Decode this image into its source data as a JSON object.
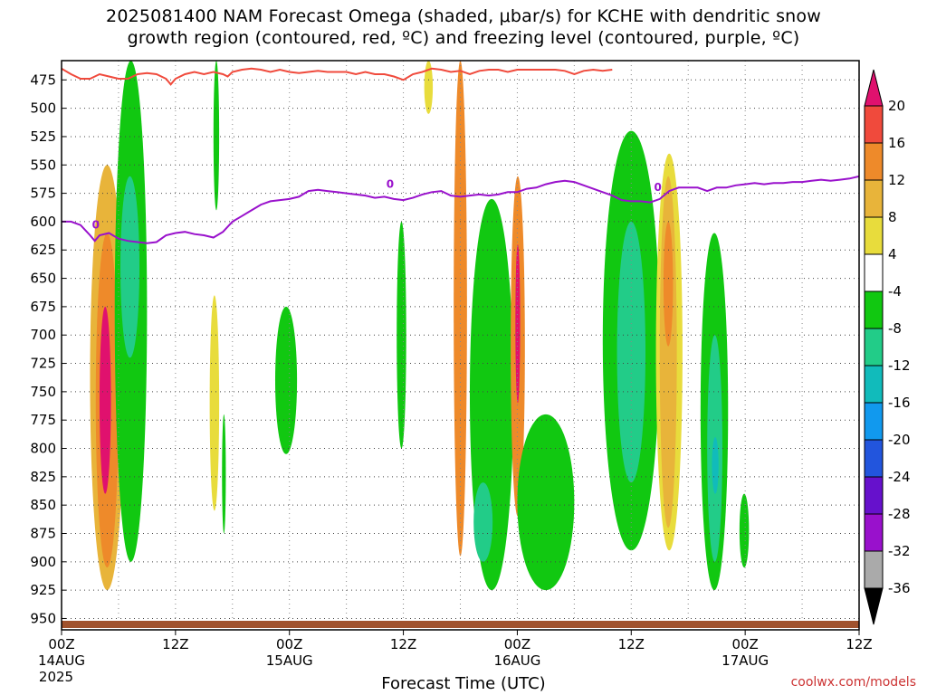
{
  "title": {
    "line1": "2025081400 NAM Forecast Omega (shaded, μbar/s) for KCHE with dendritic snow",
    "line2": "growth region (contoured, red, ºC) and freezing level (contoured, purple, ºC)"
  },
  "credit": "coolwx.com/models",
  "chart_data": {
    "type": "heatmap",
    "title": "2025081400 NAM Forecast Omega (shaded, μbar/s) for KCHE with dendritic snow growth region (contoured, red, ºC) and freezing level (contoured, purple, ºC)",
    "xlabel": "Forecast Time (UTC)",
    "ylabel": "",
    "x_hours_range": [
      0,
      84
    ],
    "y_pressure_range_hPa": [
      960,
      458
    ],
    "y_ticks": [
      475,
      500,
      525,
      550,
      575,
      600,
      625,
      650,
      675,
      700,
      725,
      750,
      775,
      800,
      825,
      850,
      875,
      900,
      925,
      950
    ],
    "x_ticks": [
      {
        "hour": 0,
        "label": "00Z",
        "date": "14AUG",
        "year": "2025"
      },
      {
        "hour": 12,
        "label": "12Z",
        "date": "",
        "year": ""
      },
      {
        "hour": 24,
        "label": "00Z",
        "date": "15AUG",
        "year": ""
      },
      {
        "hour": 36,
        "label": "12Z",
        "date": "",
        "year": ""
      },
      {
        "hour": 48,
        "label": "00Z",
        "date": "16AUG",
        "year": ""
      },
      {
        "hour": 60,
        "label": "12Z",
        "date": "",
        "year": ""
      },
      {
        "hour": 72,
        "label": "00Z",
        "date": "17AUG",
        "year": ""
      },
      {
        "hour": 84,
        "label": "12Z",
        "date": "",
        "year": ""
      }
    ],
    "grid": true,
    "colorbar": {
      "position": "right",
      "levels": [
        {
          "label": "20",
          "color": "#e0116e"
        },
        {
          "label": "16",
          "color": "#f04a3c"
        },
        {
          "label": "12",
          "color": "#ee8a2a"
        },
        {
          "label": "8",
          "color": "#e8b43a"
        },
        {
          "label": "4",
          "color": "#e8dc3c"
        },
        {
          "label": "-4",
          "color": "#ffffff"
        },
        {
          "label": "-8",
          "color": "#11c811"
        },
        {
          "label": "-12",
          "color": "#22cc88"
        },
        {
          "label": "-16",
          "color": "#11bbbb"
        },
        {
          "label": "-20",
          "color": "#1199ee"
        },
        {
          "label": "-24",
          "color": "#2255dd"
        },
        {
          "label": "-28",
          "color": "#6611cc"
        },
        {
          "label": "-32",
          "color": "#9911cc"
        },
        {
          "label": "-36",
          "color": "#aaaaaa"
        }
      ],
      "top_arrow_color": "#e0116e",
      "bottom_arrow_color": "#000000"
    },
    "freezing_level": {
      "contour_label": "0",
      "color": "#9911cc",
      "points": [
        [
          0,
          600
        ],
        [
          1,
          600
        ],
        [
          2,
          603
        ],
        [
          3,
          612
        ],
        [
          3.5,
          617
        ],
        [
          4,
          612
        ],
        [
          5,
          610
        ],
        [
          6,
          615
        ],
        [
          7,
          617
        ],
        [
          8,
          618
        ],
        [
          9,
          619
        ],
        [
          10,
          618
        ],
        [
          11,
          612
        ],
        [
          12,
          610
        ],
        [
          13,
          609
        ],
        [
          14,
          611
        ],
        [
          15,
          612
        ],
        [
          16,
          614
        ],
        [
          17,
          609
        ],
        [
          18,
          600
        ],
        [
          19,
          595
        ],
        [
          20,
          590
        ],
        [
          21,
          585
        ],
        [
          22,
          582
        ],
        [
          23,
          581
        ],
        [
          24,
          580
        ],
        [
          25,
          578
        ],
        [
          26,
          573
        ],
        [
          27,
          572
        ],
        [
          28,
          573
        ],
        [
          29,
          574
        ],
        [
          30,
          575
        ],
        [
          31,
          576
        ],
        [
          32,
          577
        ],
        [
          33,
          579
        ],
        [
          34,
          578
        ],
        [
          35,
          580
        ],
        [
          36,
          581
        ],
        [
          37,
          579
        ],
        [
          38,
          576
        ],
        [
          39,
          574
        ],
        [
          40,
          573
        ],
        [
          41,
          577
        ],
        [
          42,
          578
        ],
        [
          43,
          577
        ],
        [
          44,
          576
        ],
        [
          45,
          577
        ],
        [
          46,
          576
        ],
        [
          47,
          574
        ],
        [
          48,
          574
        ],
        [
          49,
          571
        ],
        [
          50,
          570
        ],
        [
          51,
          567
        ],
        [
          52,
          565
        ],
        [
          53,
          564
        ],
        [
          54,
          565
        ],
        [
          55,
          568
        ],
        [
          56,
          571
        ],
        [
          57,
          574
        ],
        [
          58,
          577
        ],
        [
          59,
          581
        ],
        [
          60,
          582
        ],
        [
          61,
          582
        ],
        [
          62,
          583
        ],
        [
          63,
          580
        ],
        [
          64,
          573
        ],
        [
          65,
          570
        ],
        [
          66,
          570
        ],
        [
          67,
          570
        ],
        [
          68,
          573
        ],
        [
          69,
          570
        ],
        [
          70,
          570
        ],
        [
          71,
          568
        ],
        [
          72,
          567
        ],
        [
          73,
          566
        ],
        [
          74,
          567
        ],
        [
          75,
          566
        ],
        [
          76,
          566
        ],
        [
          77,
          565
        ],
        [
          78,
          565
        ],
        [
          79,
          564
        ],
        [
          80,
          563
        ],
        [
          81,
          564
        ],
        [
          82,
          563
        ],
        [
          83,
          562
        ],
        [
          84,
          560
        ]
      ]
    },
    "dendritic_zone_bottom": {
      "color": "#f04a3c",
      "points": [
        [
          0,
          465
        ],
        [
          1,
          470
        ],
        [
          2,
          474
        ],
        [
          3,
          474
        ],
        [
          4,
          470
        ],
        [
          5,
          472
        ],
        [
          6,
          474
        ],
        [
          7,
          474
        ],
        [
          8,
          470
        ],
        [
          9,
          469
        ],
        [
          10,
          470
        ],
        [
          11,
          474
        ],
        [
          11.5,
          479
        ],
        [
          12,
          474
        ],
        [
          13,
          470
        ],
        [
          14,
          468
        ],
        [
          15,
          470
        ],
        [
          16,
          468
        ],
        [
          17,
          470
        ],
        [
          17.5,
          472
        ],
        [
          18,
          468
        ],
        [
          19,
          466
        ],
        [
          20,
          465
        ],
        [
          21,
          466
        ],
        [
          22,
          468
        ],
        [
          23,
          466
        ],
        [
          24,
          468
        ],
        [
          25,
          469
        ],
        [
          26,
          468
        ],
        [
          27,
          467
        ],
        [
          28,
          468
        ],
        [
          29,
          468
        ],
        [
          30,
          468
        ],
        [
          31,
          470
        ],
        [
          32,
          468
        ],
        [
          33,
          470
        ],
        [
          34,
          470
        ],
        [
          35,
          472
        ],
        [
          36,
          475
        ],
        [
          37,
          470
        ],
        [
          38,
          468
        ],
        [
          39,
          465
        ],
        [
          40,
          466
        ],
        [
          41,
          468
        ],
        [
          42,
          467
        ],
        [
          43,
          470
        ],
        [
          44,
          467
        ],
        [
          45,
          466
        ],
        [
          46,
          466
        ],
        [
          47,
          468
        ],
        [
          48,
          466
        ],
        [
          49,
          466
        ],
        [
          50,
          466
        ],
        [
          51,
          466
        ],
        [
          52,
          466
        ],
        [
          53,
          467
        ],
        [
          54,
          470
        ],
        [
          55,
          467
        ],
        [
          56,
          466
        ],
        [
          57,
          467
        ],
        [
          58,
          466
        ]
      ]
    },
    "omega_regions": [
      {
        "name": "east-upslope-ascent-left",
        "value": 8,
        "hours": [
          3.0,
          6.6
        ],
        "pressure": [
          550,
          925
        ]
      },
      {
        "name": "east-upslope-ascent-left-core",
        "value": 12,
        "hours": [
          3.6,
          6.0
        ],
        "pressure": [
          610,
          905
        ]
      },
      {
        "name": "east-upslope-ascent-left-peak",
        "value": 20,
        "hours": [
          4.0,
          5.2
        ],
        "pressure": [
          675,
          840
        ]
      },
      {
        "name": "subsidence-left",
        "value": -8,
        "hours": [
          5.6,
          9.0
        ],
        "pressure": [
          458,
          900
        ]
      },
      {
        "name": "subsidence-left-core",
        "value": -12,
        "hours": [
          6.2,
          8.2
        ],
        "pressure": [
          560,
          720
        ]
      },
      {
        "name": "subsidence-midday",
        "value": -8,
        "hours": [
          16.0,
          16.6
        ],
        "pressure": [
          458,
          590
        ]
      },
      {
        "name": "ascent-midday",
        "value": 4,
        "hours": [
          15.6,
          16.6
        ],
        "pressure": [
          665,
          855
        ]
      },
      {
        "name": "subsidence-midday-low",
        "value": -8,
        "hours": [
          16.9,
          17.3
        ],
        "pressure": [
          770,
          875
        ]
      },
      {
        "name": "subsidence-15aug-0z",
        "value": -8,
        "hours": [
          22.5,
          24.8
        ],
        "pressure": [
          675,
          805
        ]
      },
      {
        "name": "ascent-15aug-12z",
        "value": 4,
        "hours": [
          38.2,
          39.1
        ],
        "pressure": [
          458,
          505
        ]
      },
      {
        "name": "subsidence-15aug-12z",
        "value": -8,
        "hours": [
          35.3,
          36.3
        ],
        "pressure": [
          600,
          800
        ]
      },
      {
        "name": "strong-ascent-15aug-18z",
        "value": 20,
        "hours": [
          41.6,
          42.4
        ],
        "pressure": [
          458,
          890
        ]
      },
      {
        "name": "strong-ascent-15aug-18z-halo",
        "value": 12,
        "hours": [
          41.3,
          42.7
        ],
        "pressure": [
          458,
          895
        ]
      },
      {
        "name": "subsidence-15aug-20z",
        "value": -8,
        "hours": [
          43.0,
          47.6
        ],
        "pressure": [
          580,
          925
        ]
      },
      {
        "name": "subsidence-15aug-20z-core",
        "value": -12,
        "hours": [
          43.4,
          45.4
        ],
        "pressure": [
          830,
          900
        ]
      },
      {
        "name": "ascent-16aug-0z",
        "value": 12,
        "hours": [
          47.3,
          48.8
        ],
        "pressure": [
          560,
          860
        ]
      },
      {
        "name": "ascent-16aug-0z-peak",
        "value": 20,
        "hours": [
          47.8,
          48.3
        ],
        "pressure": [
          620,
          760
        ]
      },
      {
        "name": "subsidence-16aug-2z",
        "value": -8,
        "hours": [
          48.0,
          54.0
        ],
        "pressure": [
          770,
          925
        ]
      },
      {
        "name": "subsidence-16aug-12z",
        "value": -8,
        "hours": [
          57.0,
          63.0
        ],
        "pressure": [
          520,
          890
        ]
      },
      {
        "name": "subsidence-16aug-12z-core",
        "value": -12,
        "hours": [
          58.5,
          61.5
        ],
        "pressure": [
          600,
          830
        ]
      },
      {
        "name": "ascent-16aug-15z",
        "value": 4,
        "hours": [
          62.6,
          65.4
        ],
        "pressure": [
          540,
          890
        ]
      },
      {
        "name": "ascent-16aug-15z-core",
        "value": 8,
        "hours": [
          63.0,
          64.8
        ],
        "pressure": [
          560,
          870
        ]
      },
      {
        "name": "ascent-16aug-15z-peak",
        "value": 12,
        "hours": [
          63.4,
          64.4
        ],
        "pressure": [
          600,
          710
        ]
      },
      {
        "name": "subsidence-16aug-20z",
        "value": -8,
        "hours": [
          67.3,
          70.2
        ],
        "pressure": [
          610,
          925
        ]
      },
      {
        "name": "subsidence-16aug-20z-core",
        "value": -12,
        "hours": [
          68.0,
          69.6
        ],
        "pressure": [
          700,
          900
        ]
      },
      {
        "name": "subsidence-16aug-20z-peak",
        "value": -16,
        "hours": [
          68.5,
          69.2
        ],
        "pressure": [
          790,
          840
        ]
      },
      {
        "name": "subsidence-17aug-2z",
        "value": -8,
        "hours": [
          71.4,
          72.4
        ],
        "pressure": [
          840,
          905
        ]
      }
    ]
  }
}
